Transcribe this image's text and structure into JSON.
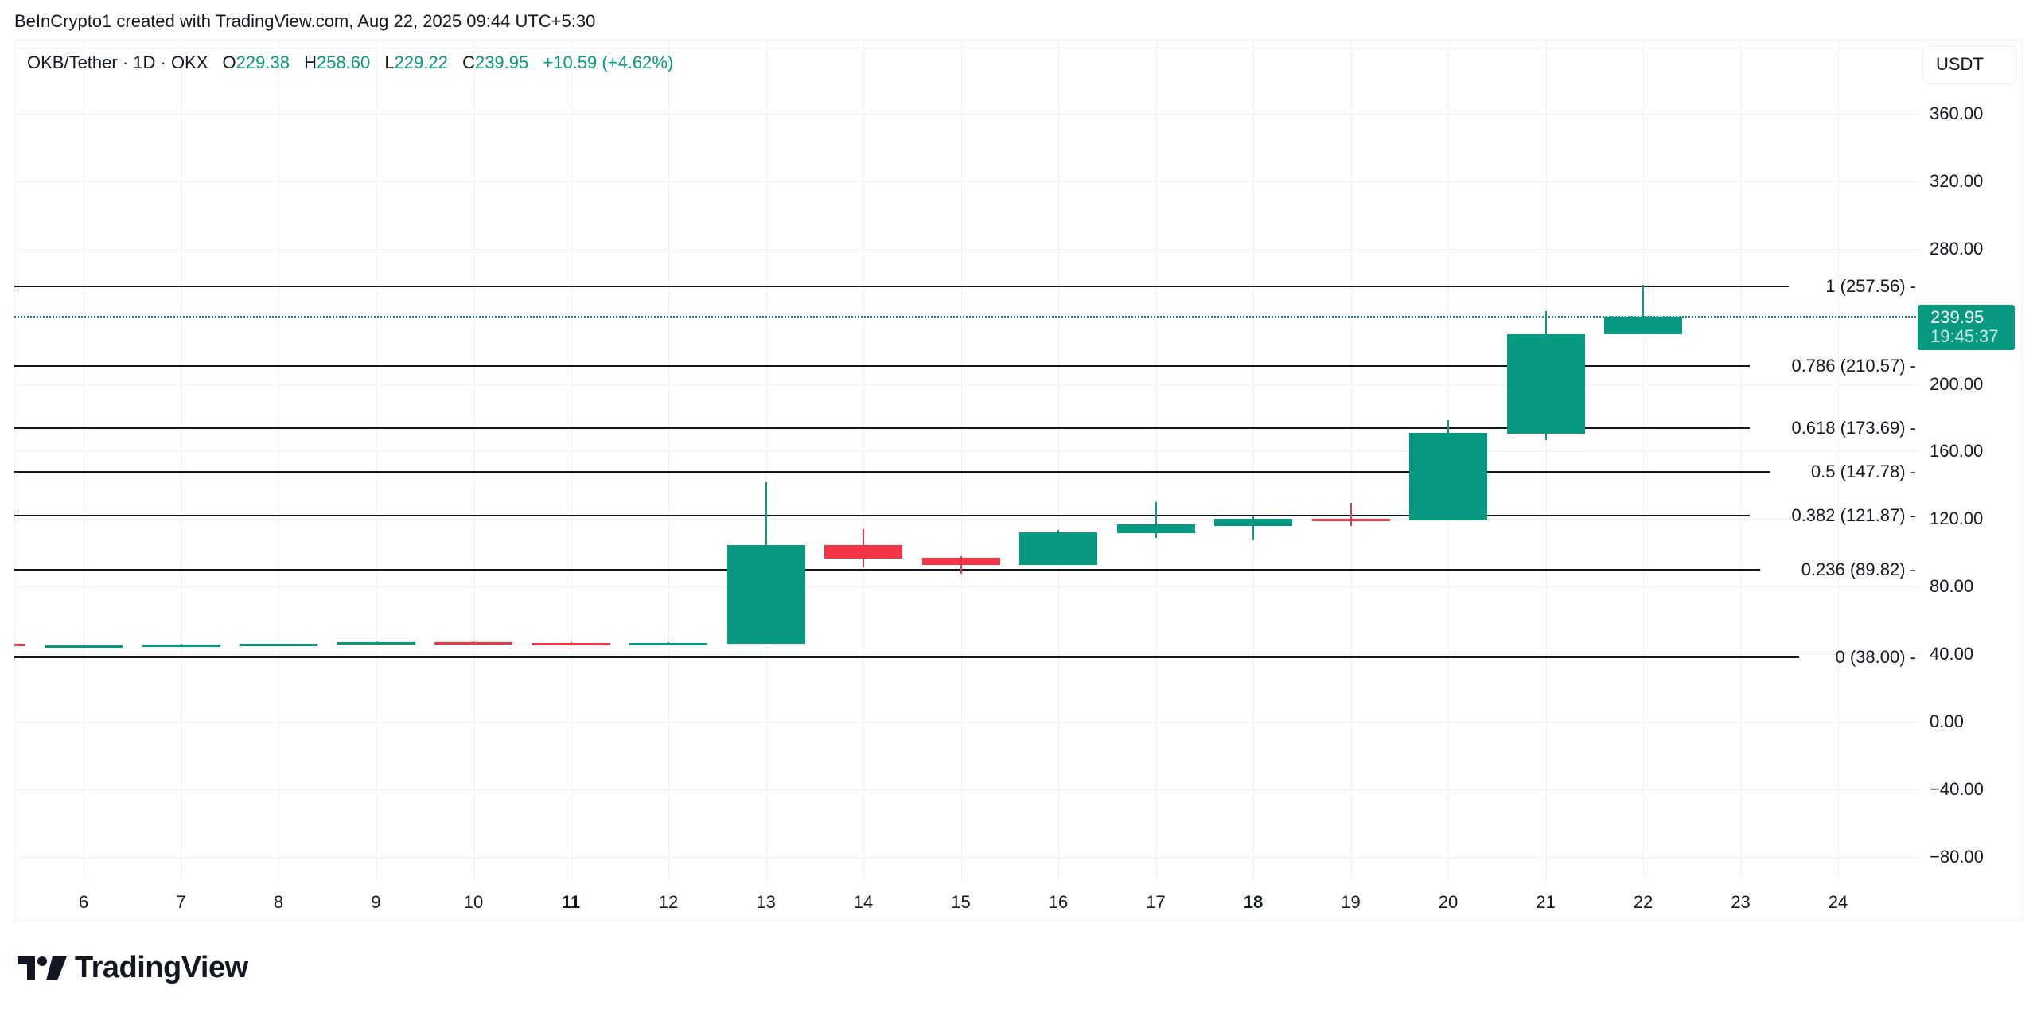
{
  "attribution": "BeInCrypto1 created with TradingView.com, Aug 22, 2025 09:44 UTC+5:30",
  "legend": {
    "symbol": "OKB/Tether · 1D · OKX",
    "open_key": "O",
    "open": "229.38",
    "high_key": "H",
    "high": "258.60",
    "low_key": "L",
    "low": "229.22",
    "close_key": "C",
    "close": "239.95",
    "change": "+10.59 (+4.62%)"
  },
  "currency_button": "USDT",
  "last_price": {
    "value": "239.95",
    "countdown": "19:45:37"
  },
  "colors": {
    "up": "#089981",
    "down": "#f23645",
    "fib_line": "#131722",
    "grid": "#f0f2f5"
  },
  "logo": {
    "text": "TradingView"
  },
  "chart_data": {
    "type": "candlestick",
    "title": "OKB/Tether · 1D · OKX",
    "xlabel": "",
    "ylabel": "USDT",
    "ylim": [
      -100,
      380
    ],
    "grid": true,
    "y_ticks": [
      "360.00",
      "320.00",
      "280.00",
      "200.00",
      "160.00",
      "120.00",
      "80.00",
      "40.00",
      "0.00",
      "−40.00",
      "−80.00"
    ],
    "y_tick_values": [
      360,
      320,
      280,
      200,
      160,
      120,
      80,
      40,
      0,
      -40,
      -80
    ],
    "x_ticks": [
      {
        "label": "6",
        "day": 6,
        "bold": false
      },
      {
        "label": "7",
        "day": 7,
        "bold": false
      },
      {
        "label": "8",
        "day": 8,
        "bold": false
      },
      {
        "label": "9",
        "day": 9,
        "bold": false
      },
      {
        "label": "10",
        "day": 10,
        "bold": false
      },
      {
        "label": "11",
        "day": 11,
        "bold": true
      },
      {
        "label": "12",
        "day": 12,
        "bold": false
      },
      {
        "label": "13",
        "day": 13,
        "bold": false
      },
      {
        "label": "14",
        "day": 14,
        "bold": false
      },
      {
        "label": "15",
        "day": 15,
        "bold": false
      },
      {
        "label": "16",
        "day": 16,
        "bold": false
      },
      {
        "label": "17",
        "day": 17,
        "bold": false
      },
      {
        "label": "18",
        "day": 18,
        "bold": true
      },
      {
        "label": "19",
        "day": 19,
        "bold": false
      },
      {
        "label": "20",
        "day": 20,
        "bold": false
      },
      {
        "label": "21",
        "day": 21,
        "bold": false
      },
      {
        "label": "22",
        "day": 22,
        "bold": false
      },
      {
        "label": "23",
        "day": 23,
        "bold": false
      },
      {
        "label": "24",
        "day": 24,
        "bold": false
      }
    ],
    "candles": [
      {
        "day": 5,
        "open": 46.2,
        "high": 46.4,
        "low": 45.4,
        "close": 45.6,
        "partial": true
      },
      {
        "day": 6,
        "open": 45.0,
        "high": 45.6,
        "low": 44.2,
        "close": 45.4
      },
      {
        "day": 7,
        "open": 45.4,
        "high": 46.0,
        "low": 44.8,
        "close": 45.8
      },
      {
        "day": 8,
        "open": 45.8,
        "high": 46.4,
        "low": 45.2,
        "close": 46.3
      },
      {
        "day": 9,
        "open": 46.3,
        "high": 47.4,
        "low": 45.8,
        "close": 47.1
      },
      {
        "day": 10,
        "open": 47.2,
        "high": 47.6,
        "low": 46.4,
        "close": 46.8
      },
      {
        "day": 11,
        "open": 46.8,
        "high": 47.0,
        "low": 46.0,
        "close": 46.4
      },
      {
        "day": 12,
        "open": 46.2,
        "high": 47.0,
        "low": 45.8,
        "close": 46.6
      },
      {
        "day": 13,
        "open": 46.0,
        "high": 142.0,
        "low": 46.0,
        "close": 104.5
      },
      {
        "day": 14,
        "open": 104.5,
        "high": 114.0,
        "low": 91.5,
        "close": 96.5
      },
      {
        "day": 15,
        "open": 97.0,
        "high": 98.2,
        "low": 87.5,
        "close": 92.7
      },
      {
        "day": 16,
        "open": 92.7,
        "high": 113.4,
        "low": 92.7,
        "close": 112.0
      },
      {
        "day": 17,
        "open": 111.5,
        "high": 129.9,
        "low": 109.0,
        "close": 116.7
      },
      {
        "day": 18,
        "open": 116.0,
        "high": 121.9,
        "low": 108.0,
        "close": 120.0
      },
      {
        "day": 19,
        "open": 120.0,
        "high": 129.4,
        "low": 115.8,
        "close": 119.0
      },
      {
        "day": 20,
        "open": 119.0,
        "high": 178.4,
        "low": 119.0,
        "close": 170.8
      },
      {
        "day": 21,
        "open": 170.4,
        "high": 243.3,
        "low": 166.6,
        "close": 229.4
      },
      {
        "day": 22,
        "open": 229.38,
        "high": 258.6,
        "low": 229.22,
        "close": 239.95
      }
    ],
    "fib_levels": [
      {
        "ratio": "1",
        "price": 257.56,
        "label": "1 (257.56)"
      },
      {
        "ratio": "0.786",
        "price": 210.57,
        "label": "0.786 (210.57)"
      },
      {
        "ratio": "0.618",
        "price": 173.69,
        "label": "0.618 (173.69)"
      },
      {
        "ratio": "0.5",
        "price": 147.78,
        "label": "0.5 (147.78)"
      },
      {
        "ratio": "0.382",
        "price": 121.87,
        "label": "0.382 (121.87)"
      },
      {
        "ratio": "0.236",
        "price": 89.82,
        "label": "0.236 (89.82)"
      },
      {
        "ratio": "0",
        "price": 38.0,
        "label": "0 (38.00)"
      }
    ],
    "last_price": 239.95
  }
}
